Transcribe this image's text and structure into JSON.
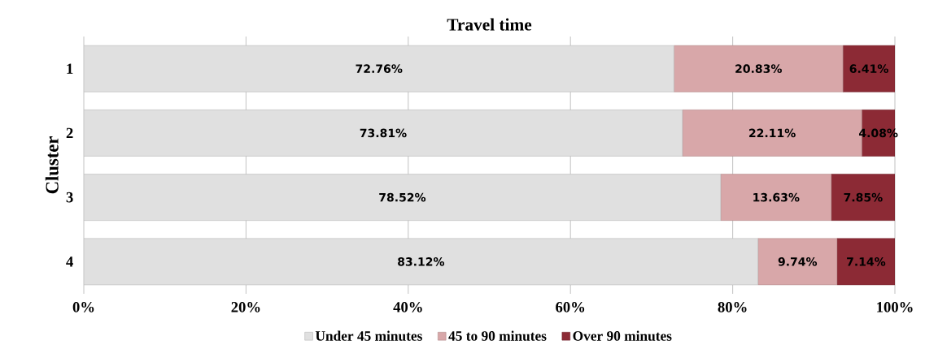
{
  "chart_data": {
    "type": "bar",
    "orientation": "horizontal",
    "stacked": true,
    "title": "Travel time",
    "ylabel": "Cluster",
    "categories": [
      "1",
      "2",
      "3",
      "4"
    ],
    "series": [
      {
        "name": "Under 45 minutes",
        "color": "#e0e0e0",
        "values": [
          72.76,
          73.81,
          78.52,
          83.12
        ],
        "value_labels": [
          "72.76%",
          "73.81%",
          "78.52%",
          "83.12%"
        ]
      },
      {
        "name": "45 to 90 minutes",
        "color": "#d8a7a9",
        "values": [
          20.83,
          22.11,
          13.63,
          9.74
        ],
        "value_labels": [
          "20.83%",
          "22.11%",
          "13.63%",
          "9.74%"
        ]
      },
      {
        "name": "Over 90 minutes",
        "color": "#8c2a35",
        "values": [
          6.41,
          4.08,
          7.85,
          7.14
        ],
        "value_labels": [
          "6.41%",
          "4.08%",
          "7.85%",
          "7.14%"
        ]
      }
    ],
    "xlim": [
      0,
      100
    ],
    "xticks": [
      {
        "value": 0,
        "label": "0%"
      },
      {
        "value": 20,
        "label": "20%"
      },
      {
        "value": 40,
        "label": "40%"
      },
      {
        "value": 60,
        "label": "60%"
      },
      {
        "value": 80,
        "label": "80%"
      },
      {
        "value": 100,
        "label": "100%"
      }
    ],
    "grid": "x",
    "legend": "bottom"
  }
}
